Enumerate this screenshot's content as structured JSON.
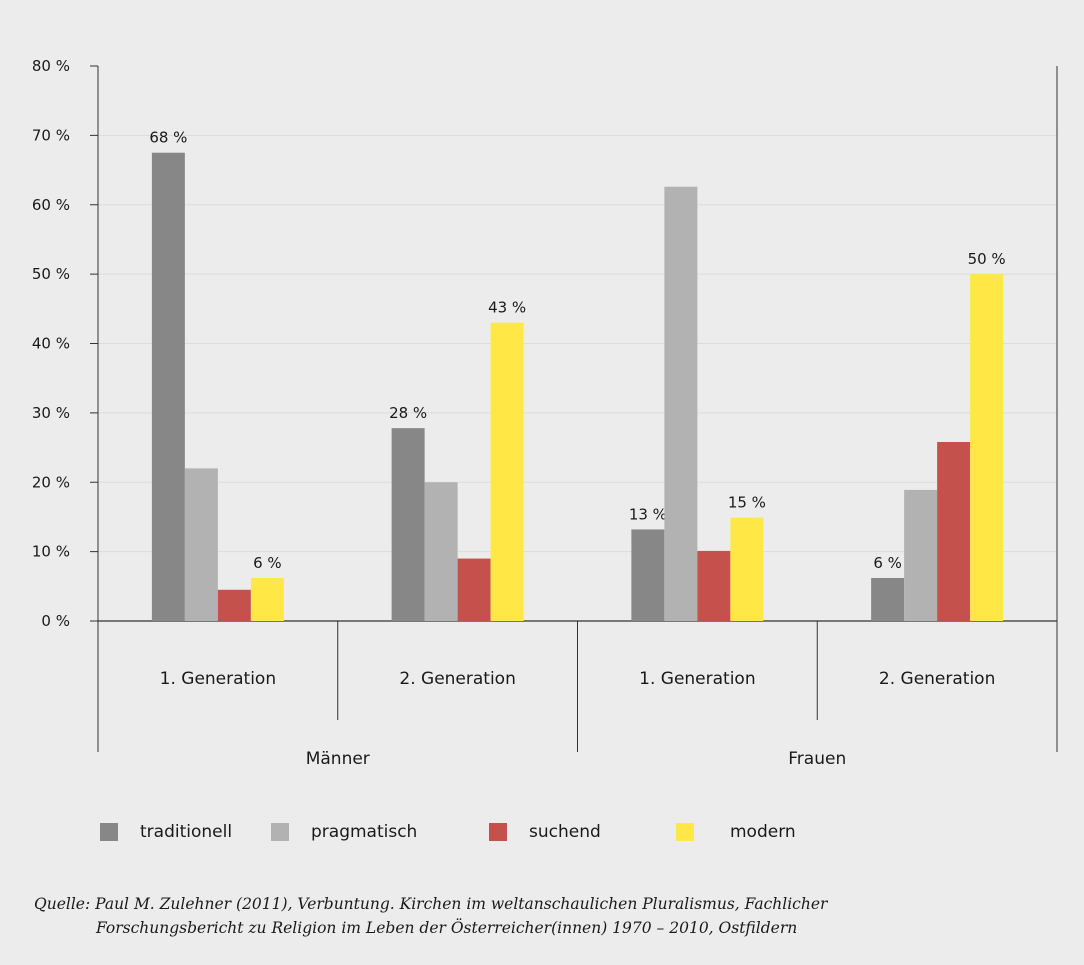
{
  "chart_data": {
    "type": "bar",
    "groups": [
      {
        "label": "Männer",
        "categories": [
          "1. Generation",
          "2. Generation"
        ]
      },
      {
        "label": "Frauen",
        "categories": [
          "1. Generation",
          "2. Generation"
        ]
      }
    ],
    "categories": [
      "1. Generation",
      "2. Generation",
      "1. Generation",
      "2. Generation"
    ],
    "series": [
      {
        "name": "traditionell",
        "color": "#878787",
        "values": [
          67.5,
          27.8,
          13.2,
          6.2
        ],
        "labels": [
          "68 %",
          "28 %",
          "13 %",
          "6 %"
        ]
      },
      {
        "name": "pragmatisch",
        "color": "#b2b2b2",
        "values": [
          22.0,
          20.0,
          62.6,
          18.9
        ],
        "labels": [
          "",
          "",
          "",
          ""
        ]
      },
      {
        "name": "suchend",
        "color": "#c4514b",
        "values": [
          4.5,
          9.0,
          10.1,
          25.8
        ],
        "labels": [
          "",
          "",
          "",
          ""
        ]
      },
      {
        "name": "modern",
        "color": "#ffe745",
        "values": [
          6.2,
          43.0,
          14.9,
          50.0
        ],
        "labels": [
          "6 %",
          "43 %",
          "15 %",
          "50 %"
        ]
      }
    ],
    "ylim": [
      0,
      80
    ],
    "yticks": [
      0,
      10,
      20,
      30,
      40,
      50,
      60,
      70,
      80
    ],
    "ytick_labels": [
      "0 %",
      "10 %",
      "20 %",
      "30 %",
      "40 %",
      "50 %",
      "60 %",
      "70 %",
      "80 %"
    ],
    "grid": true,
    "legend_position": "bottom",
    "title": "",
    "xlabel": "",
    "ylabel": ""
  },
  "source": {
    "line1": "Quelle: Paul M. Zulehner (2011), Verbuntung. Kirchen im weltanschaulichen Pluralismus, Fachlicher",
    "line2": "Forschungsbericht zu Religion im Leben der Österreicher(innen) 1970 – 2010, Ostfildern"
  }
}
